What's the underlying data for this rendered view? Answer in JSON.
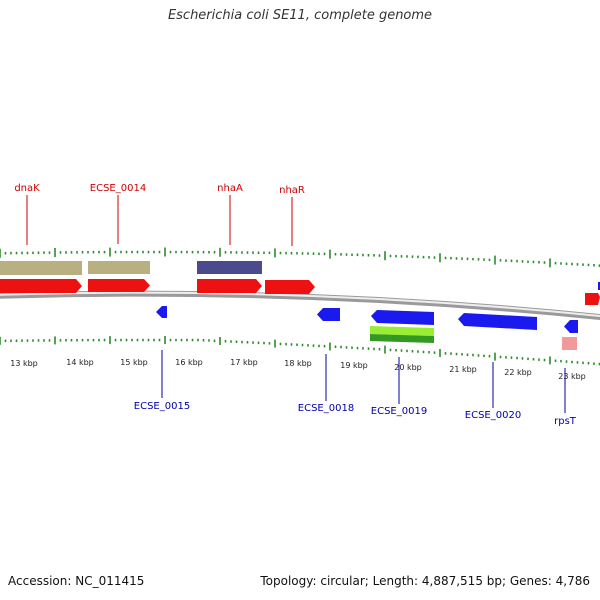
{
  "title": "Escherichia coli SE11, complete genome",
  "accession_text": "Accession: NC_011415",
  "info_text": "Topology: circular; Length: 4,887,515 bp; Genes: 4,786",
  "colors": {
    "backbone": "#8a8a8a",
    "tick": "#2e8b2e",
    "upper_label": "#cc0000",
    "lower_label": "#0000aa",
    "cds_red": "#ee1111",
    "tan": "#b8b080",
    "purple": "#4a4a8c",
    "blue": "#1a1aee",
    "green_light": "#99ee33",
    "green_dark": "#339922",
    "pink": "#f29a9a"
  },
  "kbp_labels": [
    "13 kbp",
    "14 kbp",
    "15 kbp",
    "16 kbp",
    "17 kbp",
    "18 kbp",
    "19 kbp",
    "20 kbp",
    "21 kbp",
    "22 kbp",
    "23 kbp"
  ],
  "upper_labels": [
    "dnaK",
    "ECSE_0014",
    "nhaA",
    "nhaR"
  ],
  "lower_labels": [
    "ECSE_0015",
    "ECSE_0018",
    "ECSE_0019",
    "ECSE_0020",
    "rpsT"
  ]
}
